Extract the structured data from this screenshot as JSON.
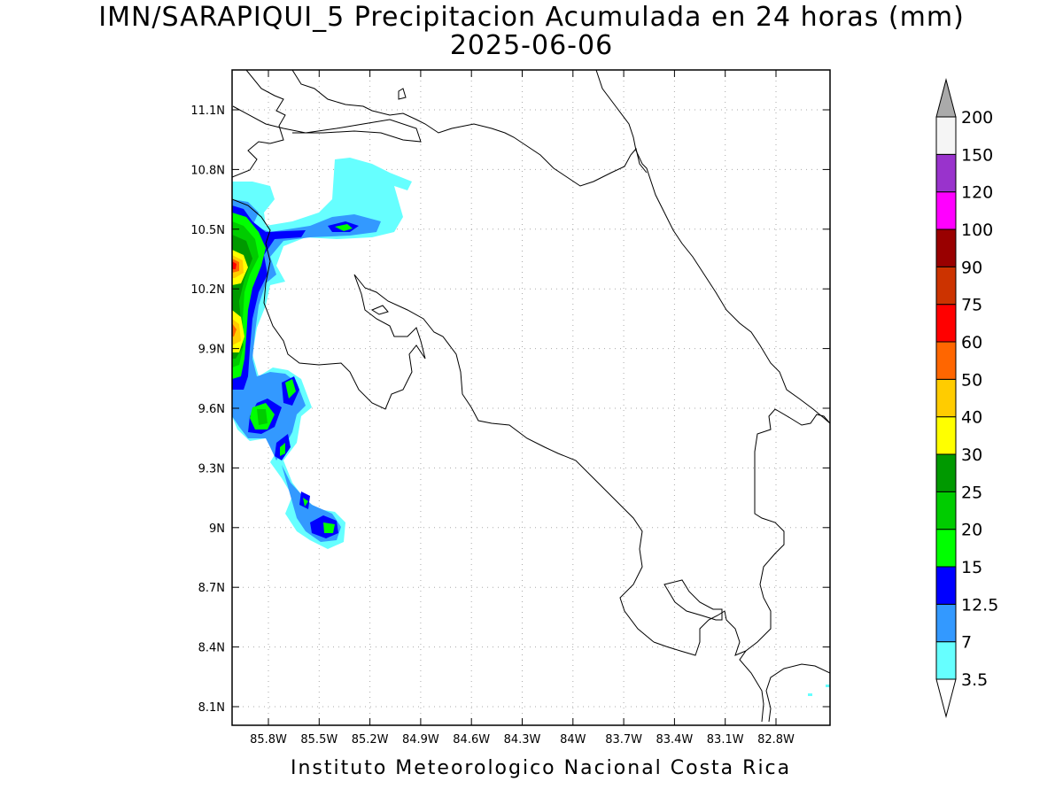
{
  "title": "IMN/SARAPIQUI_5 Precipitacion Acumulada en 24 horas (mm)",
  "date": "2025-06-06",
  "footer": "Instituto Meteorologico Nacional Costa Rica",
  "lat_ticks": [
    "11.1N",
    "10.8N",
    "10.5N",
    "10.2N",
    "9.9N",
    "9.6N",
    "9.3N",
    "9N",
    "8.7N",
    "8.4N",
    "8.1N"
  ],
  "lon_ticks": [
    "85.8W",
    "85.5W",
    "85.2W",
    "84.9W",
    "84.6W",
    "84.3W",
    "84W",
    "83.7W",
    "83.4W",
    "83.1W",
    "82.8W"
  ],
  "colorbar": {
    "levels": [
      "3.5",
      "7",
      "12.5",
      "15",
      "20",
      "25",
      "30",
      "40",
      "50",
      "60",
      "75",
      "90",
      "100",
      "120",
      "150",
      "200"
    ],
    "colors": [
      "#66ffff",
      "#3399ff",
      "#0000ff",
      "#00ff00",
      "#00cc00",
      "#009900",
      "#ffff00",
      "#ffcc00",
      "#ff6600",
      "#ff0000",
      "#cc3300",
      "#990000",
      "#ff00ff",
      "#9933cc",
      "#f5f5f5",
      "#aaaaaa"
    ]
  },
  "precip_colors": {
    "c35": "#66ffff",
    "c7": "#3399ff",
    "c125": "#0000ff",
    "c15": "#00ff00",
    "c20": "#00cc00",
    "c25": "#009900",
    "c30": "#ffff00",
    "c40": "#ffcc00",
    "c50": "#ff6600",
    "c60": "#ff0000"
  }
}
